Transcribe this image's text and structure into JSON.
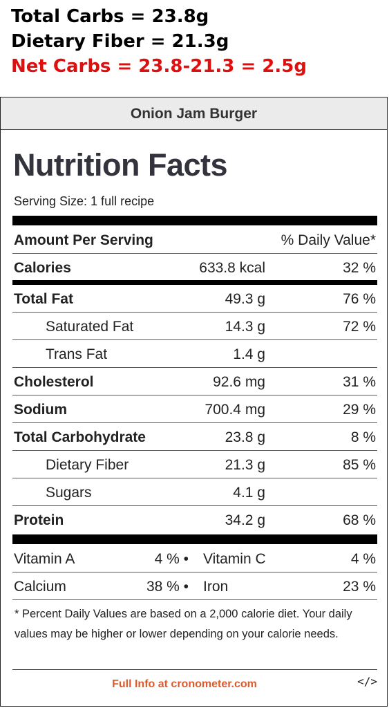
{
  "header": {
    "total_carbs": "Total Carbs = 23.8g",
    "dietary_fiber": "Dietary Fiber = 21.3g",
    "net_carbs": "Net Carbs = 23.8-21.3 = 2.5g"
  },
  "label": {
    "recipe_name": "Onion Jam Burger",
    "title": "Nutrition Facts",
    "serving_size": "Serving Size: 1 full recipe",
    "amount_per_serving": "Amount Per Serving",
    "daily_value_header": "% Daily Value*",
    "calories": {
      "name": "Calories",
      "amount": "633.8 kcal",
      "dv": "32 %"
    },
    "nutrients": [
      {
        "name": "Total Fat",
        "amount": "49.3 g",
        "dv": "76 %"
      },
      {
        "name": "Saturated Fat",
        "amount": "14.3 g",
        "dv": "72 %"
      },
      {
        "name": "Trans Fat",
        "amount": "1.4 g",
        "dv": ""
      },
      {
        "name": "Cholesterol",
        "amount": "92.6 mg",
        "dv": "31 %"
      },
      {
        "name": "Sodium",
        "amount": "700.4 mg",
        "dv": "29 %"
      },
      {
        "name": "Total Carbohydrate",
        "amount": "23.8 g",
        "dv": "8 %"
      },
      {
        "name": "Dietary Fiber",
        "amount": "21.3 g",
        "dv": "85 %"
      },
      {
        "name": "Sugars",
        "amount": "4.1 g",
        "dv": ""
      },
      {
        "name": "Protein",
        "amount": "34.2 g",
        "dv": "68 %"
      }
    ],
    "vitamins": [
      {
        "name1": "Vitamin A",
        "pct1": "4 % •",
        "name2": "Vitamin C",
        "pct2": "4 %"
      },
      {
        "name1": "Calcium",
        "pct1": "38 % •",
        "name2": "Iron",
        "pct2": "23 %"
      }
    ],
    "footnote": "* Percent Daily Values are based on a 2,000 calorie diet. Your daily values may be higher or lower depending on your calorie needs.",
    "full_info": "Full Info at cronometer.com",
    "embed_code": "</>"
  }
}
